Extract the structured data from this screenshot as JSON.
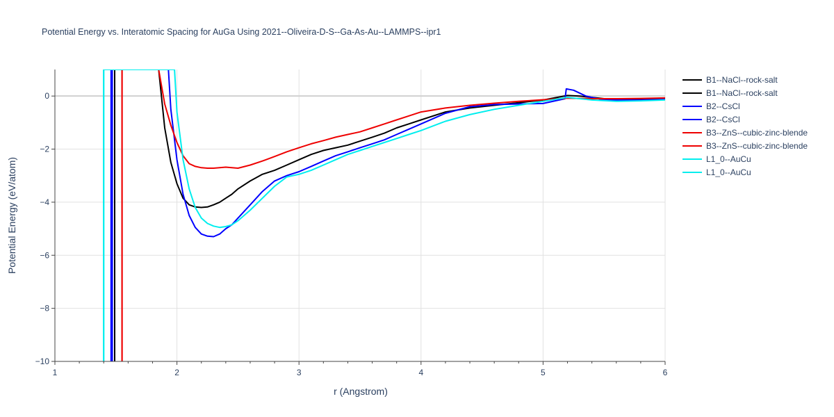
{
  "chart_data": {
    "type": "line",
    "title": "Potential Energy vs. Interatomic Spacing for AuGa Using 2021--Oliveira-D-S--Ga-As-Au--LAMMPS--ipr1",
    "xlabel": "r (Angstrom)",
    "ylabel": "Potential Energy (eV/atom)",
    "xlim": [
      1,
      6
    ],
    "ylim": [
      -10,
      1
    ],
    "xticks": [
      "1",
      "2",
      "3",
      "4",
      "5",
      "6"
    ],
    "yticks": [
      "−10",
      "−8",
      "−6",
      "−4",
      "−2",
      "0"
    ],
    "xtick_values": [
      1,
      2,
      3,
      4,
      5,
      6
    ],
    "ytick_values": [
      -10,
      -8,
      -6,
      -4,
      -2,
      0
    ],
    "grid": true,
    "legend_position": "right",
    "series": [
      {
        "name": "B1--NaCl--rock-salt",
        "color": "#000000",
        "x": [
          1.47,
          1.47,
          1.85,
          1.9,
          1.95,
          2.0,
          2.05,
          2.1,
          2.15,
          2.2,
          2.25,
          2.3,
          2.35,
          2.4,
          2.45,
          2.5,
          2.6,
          2.7,
          2.8,
          2.9,
          3.0,
          3.1,
          3.2,
          3.3,
          3.4,
          3.5,
          3.6,
          3.7,
          3.8,
          3.9,
          4.0,
          4.2,
          4.4,
          4.6,
          4.8,
          5.0,
          5.2,
          5.3,
          5.5,
          5.8,
          6.0
        ],
        "y": [
          -10,
          1,
          1,
          -1.2,
          -2.5,
          -3.3,
          -3.85,
          -4.1,
          -4.18,
          -4.2,
          -4.18,
          -4.1,
          -4.0,
          -3.85,
          -3.7,
          -3.5,
          -3.2,
          -2.95,
          -2.8,
          -2.6,
          -2.4,
          -2.2,
          -2.05,
          -1.95,
          -1.85,
          -1.7,
          -1.55,
          -1.4,
          -1.2,
          -1.05,
          -0.9,
          -0.6,
          -0.45,
          -0.35,
          -0.25,
          -0.15,
          0.02,
          0.0,
          -0.1,
          -0.1,
          -0.08
        ]
      },
      {
        "name": "B1--NaCl--rock-salt",
        "color": "#000000",
        "x": [
          1.49,
          1.49
        ],
        "y": [
          -10,
          1
        ]
      },
      {
        "name": "B2--CsCl",
        "color": "#0000ff",
        "x": [
          1.46,
          1.46,
          1.93,
          1.95,
          2.0,
          2.05,
          2.1,
          2.15,
          2.2,
          2.25,
          2.3,
          2.35,
          2.4,
          2.45,
          2.5,
          2.6,
          2.7,
          2.8,
          2.9,
          3.0,
          3.1,
          3.2,
          3.3,
          3.4,
          3.5,
          3.6,
          3.7,
          3.8,
          3.9,
          4.0,
          4.2,
          4.4,
          4.6,
          4.8,
          5.0,
          5.18,
          5.19,
          5.25,
          5.35,
          5.5,
          5.8,
          6.0
        ],
        "y": [
          -10,
          1,
          1,
          -0.5,
          -2.4,
          -3.7,
          -4.5,
          -4.95,
          -5.2,
          -5.28,
          -5.3,
          -5.2,
          -5.0,
          -4.85,
          -4.6,
          -4.1,
          -3.6,
          -3.2,
          -3.0,
          -2.85,
          -2.65,
          -2.45,
          -2.25,
          -2.1,
          -1.95,
          -1.8,
          -1.65,
          -1.45,
          -1.25,
          -1.05,
          -0.65,
          -0.4,
          -0.32,
          -0.3,
          -0.28,
          -0.1,
          0.27,
          0.22,
          0.0,
          -0.15,
          -0.15,
          -0.12
        ]
      },
      {
        "name": "B2--CsCl",
        "color": "#0000ff",
        "x": [
          1.47,
          1.47
        ],
        "y": [
          -10,
          1
        ]
      },
      {
        "name": "B3--ZnS--cubic-zinc-blende",
        "color": "#ee0000",
        "x": [
          1.55,
          1.55,
          1.85,
          1.9,
          1.95,
          2.0,
          2.05,
          2.1,
          2.15,
          2.2,
          2.25,
          2.3,
          2.35,
          2.4,
          2.45,
          2.5,
          2.6,
          2.7,
          2.8,
          2.9,
          3.0,
          3.1,
          3.2,
          3.3,
          3.4,
          3.5,
          3.6,
          3.7,
          3.8,
          3.9,
          4.0,
          4.2,
          4.4,
          4.6,
          4.8,
          5.0,
          5.2,
          5.4,
          5.6,
          5.8,
          6.0
        ],
        "y": [
          -10,
          1,
          1,
          -0.3,
          -1.1,
          -1.75,
          -2.25,
          -2.55,
          -2.65,
          -2.7,
          -2.72,
          -2.72,
          -2.7,
          -2.68,
          -2.7,
          -2.72,
          -2.6,
          -2.45,
          -2.28,
          -2.1,
          -1.95,
          -1.8,
          -1.68,
          -1.55,
          -1.45,
          -1.35,
          -1.2,
          -1.05,
          -0.9,
          -0.75,
          -0.6,
          -0.45,
          -0.35,
          -0.27,
          -0.2,
          -0.14,
          -0.08,
          -0.1,
          -0.1,
          -0.09,
          -0.07
        ]
      },
      {
        "name": "B3--ZnS--cubic-zinc-blende",
        "color": "#ee0000",
        "x": [
          1.55,
          1.55
        ],
        "y": [
          -10,
          1
        ]
      },
      {
        "name": "L1_0--AuCu",
        "color": "#00eeee",
        "x": [
          1.4,
          1.4,
          1.98,
          2.0,
          2.05,
          2.1,
          2.15,
          2.2,
          2.25,
          2.3,
          2.35,
          2.4,
          2.45,
          2.5,
          2.6,
          2.7,
          2.8,
          2.9,
          3.0,
          3.1,
          3.2,
          3.3,
          3.4,
          3.5,
          3.6,
          3.7,
          3.8,
          3.9,
          4.0,
          4.2,
          4.4,
          4.6,
          4.8,
          5.0,
          5.2,
          5.4,
          5.6,
          5.8,
          6.0
        ],
        "y": [
          -10,
          1,
          1,
          -0.6,
          -2.4,
          -3.5,
          -4.2,
          -4.6,
          -4.8,
          -4.9,
          -4.95,
          -4.92,
          -4.85,
          -4.7,
          -4.3,
          -3.85,
          -3.4,
          -3.05,
          -2.95,
          -2.8,
          -2.6,
          -2.4,
          -2.2,
          -2.05,
          -1.9,
          -1.75,
          -1.6,
          -1.45,
          -1.3,
          -0.95,
          -0.7,
          -0.5,
          -0.35,
          -0.2,
          -0.05,
          -0.15,
          -0.2,
          -0.18,
          -0.15
        ]
      },
      {
        "name": "L1_0--AuCu",
        "color": "#00eeee",
        "x": [
          1.4,
          1.4
        ],
        "y": [
          -10,
          1
        ]
      }
    ]
  }
}
